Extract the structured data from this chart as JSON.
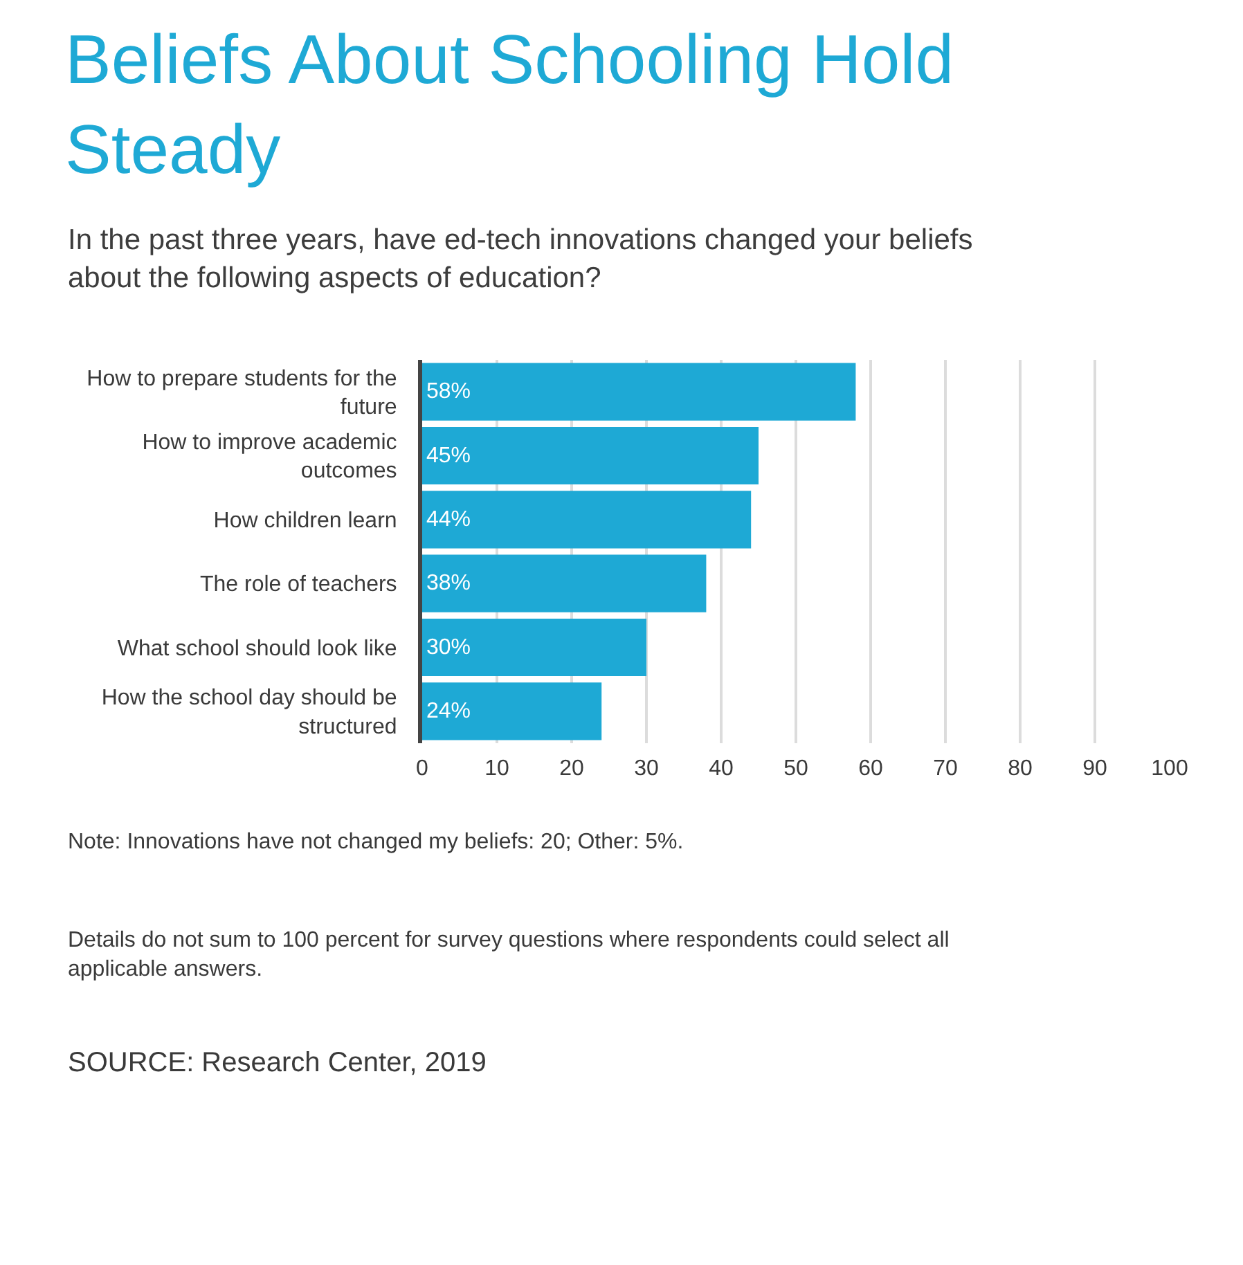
{
  "chart_data": {
    "type": "bar",
    "orientation": "horizontal",
    "title": "Beliefs About Schooling Hold Steady",
    "subtitle": "In the past three years, have ed-tech innovations changed your beliefs about the following aspects of education?",
    "categories": [
      "How to prepare students for the future",
      "How to improve academic outcomes",
      "How children learn",
      "The role of teachers",
      "What school should look like",
      "How the school day should be structured"
    ],
    "values": [
      58,
      45,
      44,
      38,
      30,
      24
    ],
    "value_labels": [
      "58%",
      "45%",
      "44%",
      "38%",
      "30%",
      "24%"
    ],
    "color": "#1ea9d5",
    "xlim": [
      0,
      100
    ],
    "xticks": [
      0,
      10,
      20,
      30,
      40,
      50,
      60,
      70,
      80,
      90,
      100
    ],
    "grid": "x",
    "annotations": [
      "Note: Innovations have not changed my beliefs: 20; Other: 5%.",
      "Details do not sum to 100 percent for survey questions where respondents could select all applicable answers.",
      "SOURCE: Research Center, 2019"
    ]
  }
}
